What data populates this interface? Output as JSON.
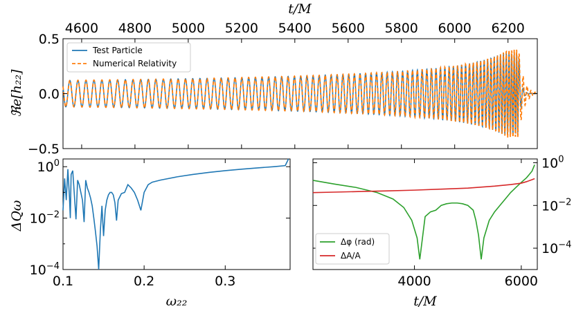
{
  "chart_data": [
    {
      "type": "line",
      "panel": "top",
      "xlabel": "t/M",
      "ylabel": "ℜe[h₂₂]",
      "xlim": [
        4530,
        6310
      ],
      "ylim": [
        -0.5,
        0.5
      ],
      "x_ticks": [
        "4600",
        "4800",
        "5000",
        "5200",
        "5400",
        "5600",
        "5800",
        "6000",
        "6200"
      ],
      "y_ticks": [
        "0.5",
        "0.0",
        "−0.5"
      ],
      "series": [
        {
          "name": "Test Particle",
          "color": "#1f77b4",
          "style": "solid",
          "merger_t": 6240,
          "peak_amplitude": 0.37,
          "early_amplitude": 0.12
        },
        {
          "name": "Numerical Relativity",
          "color": "#ff7f0e",
          "style": "dashed",
          "merger_t": 6240,
          "peak_amplitude": 0.4,
          "early_amplitude": 0.12
        }
      ],
      "legend": {
        "position": "top-left",
        "entries": [
          "Test Particle",
          "Numerical Relativity"
        ]
      }
    },
    {
      "type": "line",
      "panel": "bottom-left",
      "xlabel": "ω₂₂",
      "ylabel": "ΔQω",
      "yscale": "log",
      "xlim": [
        0.1,
        0.38
      ],
      "ylim": [
        0.0001,
        2
      ],
      "x_ticks": [
        "0.1",
        "0.2",
        "0.3"
      ],
      "y_ticks": [
        {
          "base": "10",
          "exp": "0"
        },
        {
          "base": "10",
          "exp": "−2"
        },
        {
          "base": "10",
          "exp": "−4"
        }
      ],
      "series": [
        {
          "name": "ΔQω",
          "color": "#1f77b4",
          "x": [
            0.1,
            0.102,
            0.104,
            0.106,
            0.108,
            0.109,
            0.11,
            0.112,
            0.114,
            0.116,
            0.118,
            0.12,
            0.122,
            0.124,
            0.126,
            0.128,
            0.13,
            0.132,
            0.134,
            0.136,
            0.138,
            0.14,
            0.142,
            0.144,
            0.146,
            0.148,
            0.15,
            0.152,
            0.154,
            0.156,
            0.158,
            0.16,
            0.162,
            0.164,
            0.166,
            0.168,
            0.172,
            0.176,
            0.18,
            0.184,
            0.188,
            0.192,
            0.196,
            0.2,
            0.205,
            0.21,
            0.22,
            0.24,
            0.26,
            0.28,
            0.3,
            0.32,
            0.34,
            0.36,
            0.374,
            0.378
          ],
          "y": [
            0.02,
            0.35,
            0.05,
            0.8,
            0.06,
            0.01,
            0.5,
            0.7,
            0.08,
            0.009,
            0.3,
            0.2,
            0.1,
            0.05,
            0.007,
            0.3,
            0.15,
            0.1,
            0.06,
            0.03,
            0.01,
            0.003,
            0.0008,
            0.0001,
            0.003,
            0.03,
            0.002,
            0.02,
            0.05,
            0.08,
            0.1,
            0.1,
            0.08,
            0.04,
            0.008,
            0.05,
            0.09,
            0.1,
            0.2,
            0.15,
            0.1,
            0.05,
            0.02,
            0.1,
            0.2,
            0.25,
            0.3,
            0.4,
            0.5,
            0.6,
            0.7,
            0.8,
            0.9,
            1.0,
            1.1,
            2.0
          ]
        }
      ]
    },
    {
      "type": "line",
      "panel": "bottom-right",
      "xlabel": "t/M",
      "yscale": "log",
      "xlim": [
        2100,
        6300
      ],
      "ylim": [
        1e-05,
        1.5
      ],
      "x_ticks": [
        "4000",
        "6000"
      ],
      "y_ticks": [
        {
          "base": "10",
          "exp": "0"
        },
        {
          "base": "10",
          "exp": "−2"
        },
        {
          "base": "10",
          "exp": "−4"
        }
      ],
      "series": [
        {
          "name": "Δφ (rad)",
          "color": "#2ca02c",
          "x": [
            2100,
            2500,
            2900,
            3300,
            3600,
            3800,
            3950,
            4050,
            4100,
            4150,
            4200,
            4300,
            4400,
            4500,
            4600,
            4700,
            4800,
            4900,
            5000,
            5100,
            5150,
            5200,
            5250,
            5300,
            5400,
            5500,
            5600,
            5700,
            5800,
            5900,
            6000,
            6100,
            6200,
            6250
          ],
          "y": [
            0.15,
            0.1,
            0.07,
            0.04,
            0.02,
            0.008,
            0.002,
            0.0003,
            3e-05,
            0.0003,
            0.003,
            0.005,
            0.006,
            0.01,
            0.012,
            0.013,
            0.013,
            0.012,
            0.01,
            0.006,
            0.002,
            0.0004,
            3e-05,
            0.0003,
            0.002,
            0.005,
            0.01,
            0.02,
            0.04,
            0.07,
            0.12,
            0.2,
            0.4,
            0.8
          ]
        },
        {
          "name": "ΔA/A",
          "color": "#d62728",
          "x": [
            2100,
            2500,
            3000,
            3500,
            4000,
            4500,
            5000,
            5500,
            5800,
            6000,
            6100,
            6200,
            6250
          ],
          "y": [
            0.04,
            0.042,
            0.045,
            0.048,
            0.052,
            0.058,
            0.065,
            0.08,
            0.095,
            0.11,
            0.13,
            0.16,
            0.18
          ]
        }
      ],
      "legend": {
        "position": "lower-left",
        "entries": [
          "Δφ (rad)",
          "ΔA/A"
        ]
      }
    }
  ]
}
